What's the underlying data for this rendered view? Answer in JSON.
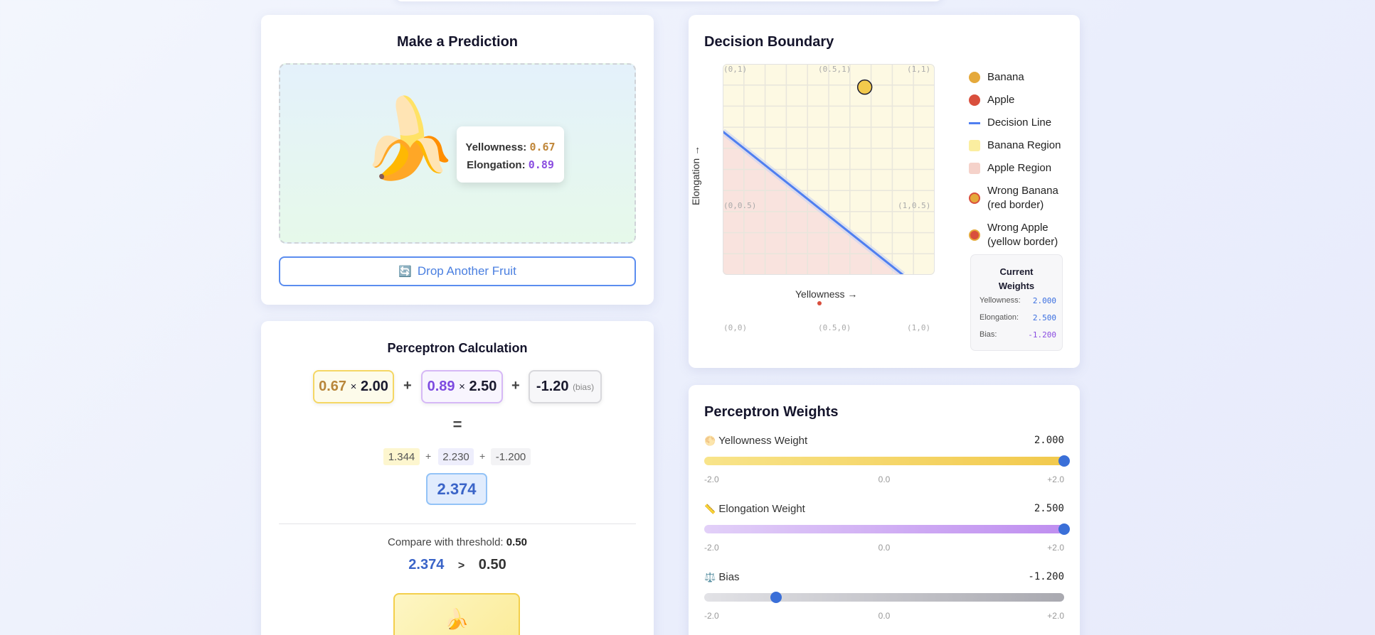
{
  "prediction": {
    "title": "Make a Prediction",
    "fruit_emoji": "🍌",
    "yellowness_label": "Yellowness:",
    "yellowness_value": "0.67",
    "elongation_label": "Elongation:",
    "elongation_value": "0.89",
    "drop_button_icon": "🔄",
    "drop_button_label": "Drop Another Fruit"
  },
  "calculation": {
    "title": "Perceptron Calculation",
    "term1_input": "0.67",
    "term1_times": "×",
    "term1_weight": "2.00",
    "term2_input": "0.89",
    "term2_times": "×",
    "term2_weight": "2.50",
    "term3_bias": "-1.20",
    "term3_label": "(bias)",
    "plus": "+",
    "equals": "=",
    "partials": [
      "1.344",
      "2.230",
      "-1.200"
    ],
    "sum": "2.374",
    "compare_label": "Compare with threshold:",
    "threshold": "0.50",
    "compare_left": "2.374",
    "compare_op": ">",
    "compare_right": "0.50",
    "result_emoji": "🍌"
  },
  "decision_boundary": {
    "title": "Decision Boundary",
    "x_axis_label": "Yellowness →",
    "y_axis_label": "Elongation →",
    "corner_labels": {
      "tl": "(0,1)",
      "tm": "(0.5,1)",
      "tr": "(1,1)",
      "ml": "(0,0.5)",
      "mr": "(1,0.5)",
      "bl": "(0,0)",
      "bm": "(0.5,0)",
      "br": "(1,0)"
    },
    "xlim": [
      0,
      1
    ],
    "ylim": [
      0,
      1
    ],
    "grid": true,
    "boundary": {
      "w_yellowness": 2.0,
      "w_elongation": 2.5,
      "bias": -1.2,
      "threshold": 0.5
    },
    "points": [
      {
        "x": 0.67,
        "y": 0.89,
        "class": "banana",
        "current": true
      }
    ],
    "colors": {
      "banana": "#f2c94c",
      "apple": "#d94f3d",
      "line": "#4f7ff0",
      "banana_region": "#fdf9e3",
      "apple_region": "#f9e3de"
    },
    "legend": [
      {
        "label": "Banana",
        "type": "banana"
      },
      {
        "label": "Apple",
        "type": "apple"
      },
      {
        "label": "Decision Line",
        "type": "line"
      },
      {
        "label": "Banana Region",
        "type": "banana-region"
      },
      {
        "label": "Apple Region",
        "type": "apple-region"
      },
      {
        "label": "Wrong Banana",
        "sub": "(red border)",
        "type": "wrong-banana"
      },
      {
        "label": "Wrong Apple",
        "sub": "(yellow border)",
        "type": "wrong-apple"
      }
    ],
    "weights_box": {
      "title": "Current Weights",
      "rows": [
        {
          "label": "Yellowness:",
          "value": "2.000"
        },
        {
          "label": "Elongation:",
          "value": "2.500"
        },
        {
          "label": "Bias:",
          "value": "-1.200"
        }
      ]
    }
  },
  "weights": {
    "title": "Perceptron Weights",
    "sliders": [
      {
        "icon": "🌕",
        "label": "Yellowness Weight",
        "value": "2.000",
        "numeric": 2.0,
        "min": "-2.0",
        "mid": "0.0",
        "max": "+2.0"
      },
      {
        "icon": "📏",
        "label": "Elongation Weight",
        "value": "2.500",
        "numeric": 2.5,
        "min": "-2.0",
        "mid": "0.0",
        "max": "+2.0"
      },
      {
        "icon": "⚖️",
        "label": "Bias",
        "value": "-1.200",
        "numeric": -1.2,
        "min": "-2.0",
        "mid": "0.0",
        "max": "+2.0"
      }
    ]
  }
}
